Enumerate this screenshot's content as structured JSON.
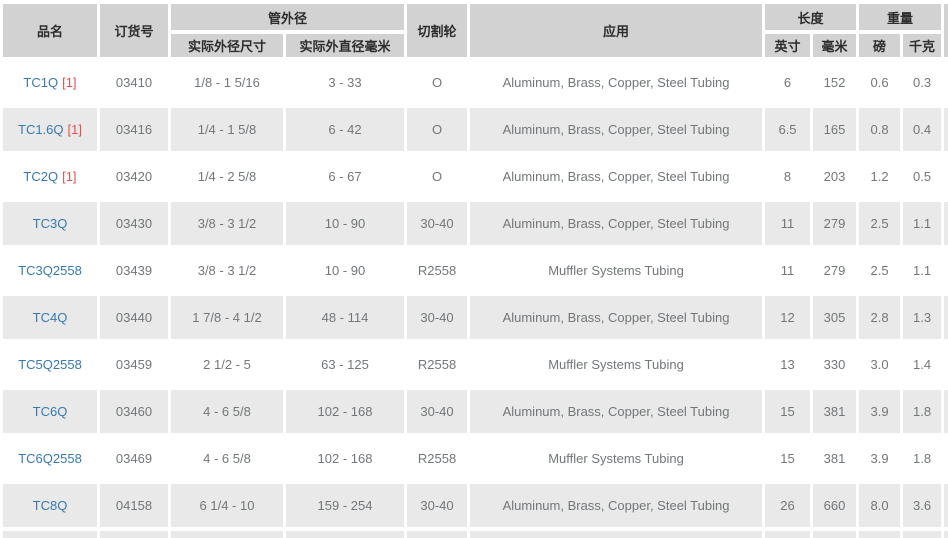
{
  "header": {
    "product": "品名",
    "order_no": "订货号",
    "outer_diameter_group": "管外径",
    "actual_od_size": "实际外径尺寸",
    "actual_od_mm": "实际外直径毫米",
    "cutting_wheel": "切割轮",
    "application": "应用",
    "length_group": "长度",
    "length_in": "英寸",
    "length_mm": "毫米",
    "weight_group": "重量",
    "weight_lb": "磅",
    "weight_kg": "千克"
  },
  "colors": {
    "header_bg": "#d2d2d2",
    "row_alt_bg": "#e9e9e9",
    "row_bg": "#ffffff",
    "link_blue": "#3779b5",
    "footnote_red": "#e2524e",
    "body_text": "#72777a"
  },
  "rows": [
    {
      "name": "TC1Q",
      "footnote": "[1]",
      "order": "03410",
      "od_in": "1/8 - 1 5/16",
      "od_mm": "3 - 33",
      "wheel": "O",
      "app": "Aluminum, Brass, Copper, Steel Tubing",
      "len_in": "6",
      "len_mm": "152",
      "lb": "0.6",
      "kg": "0.3"
    },
    {
      "name": "TC1.6Q",
      "footnote": "[1]",
      "order": "03416",
      "od_in": "1/4 - 1 5/8",
      "od_mm": "6 - 42",
      "wheel": "O",
      "app": "Aluminum, Brass, Copper, Steel Tubing",
      "len_in": "6.5",
      "len_mm": "165",
      "lb": "0.8",
      "kg": "0.4"
    },
    {
      "name": "TC2Q",
      "footnote": "[1]",
      "order": "03420",
      "od_in": "1/4 - 2 5/8",
      "od_mm": "6 - 67",
      "wheel": "O",
      "app": "Aluminum, Brass, Copper, Steel Tubing",
      "len_in": "8",
      "len_mm": "203",
      "lb": "1.2",
      "kg": "0.5"
    },
    {
      "name": "TC3Q",
      "order": "03430",
      "od_in": "3/8 - 3 1/2",
      "od_mm": "10 - 90",
      "wheel": "30-40",
      "app": "Aluminum, Brass, Copper, Steel Tubing",
      "len_in": "11",
      "len_mm": "279",
      "lb": "2.5",
      "kg": "1.1"
    },
    {
      "name": "TC3Q2558",
      "order": "03439",
      "od_in": "3/8 - 3 1/2",
      "od_mm": "10 - 90",
      "wheel": "R2558",
      "app": "Muffler Systems Tubing",
      "len_in": "11",
      "len_mm": "279",
      "lb": "2.5",
      "kg": "1.1"
    },
    {
      "name": "TC4Q",
      "order": "03440",
      "od_in": "1 7/8 - 4 1/2",
      "od_mm": "48 - 114",
      "wheel": "30-40",
      "app": "Aluminum, Brass, Copper, Steel Tubing",
      "len_in": "12",
      "len_mm": "305",
      "lb": "2.8",
      "kg": "1.3"
    },
    {
      "name": "TC5Q2558",
      "order": "03459",
      "od_in": "2 1/2 - 5",
      "od_mm": "63 - 125",
      "wheel": "R2558",
      "app": "Muffler Systems Tubing",
      "len_in": "13",
      "len_mm": "330",
      "lb": "3.0",
      "kg": "1.4"
    },
    {
      "name": "TC6Q",
      "order": "03460",
      "od_in": "4 - 6 5/8",
      "od_mm": "102 - 168",
      "wheel": "30-40",
      "app": "Aluminum, Brass, Copper, Steel Tubing",
      "len_in": "15",
      "len_mm": "381",
      "lb": "3.9",
      "kg": "1.8"
    },
    {
      "name": "TC6Q2558",
      "order": "03469",
      "od_in": "4 - 6 5/8",
      "od_mm": "102 - 168",
      "wheel": "R2558",
      "app": "Muffler Systems Tubing",
      "len_in": "15",
      "len_mm": "381",
      "lb": "3.9",
      "kg": "1.8"
    },
    {
      "name": "TC8Q",
      "order": "04158",
      "od_in": "6 1/4 - 10",
      "od_mm": "159 - 254",
      "wheel": "30-40",
      "app": "Aluminum, Brass, Copper, Steel Tubing",
      "len_in": "26",
      "len_mm": "660",
      "lb": "8.0",
      "kg": "3.6"
    }
  ]
}
